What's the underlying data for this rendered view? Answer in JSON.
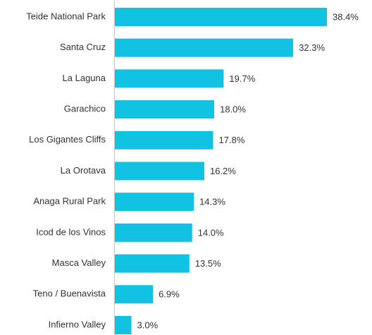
{
  "chart_data": {
    "type": "hbar",
    "categories": [
      "Teide National Park",
      "Santa Cruz",
      "La Laguna",
      "Garachico",
      "Los Gigantes Cliffs",
      "La Orotava",
      "Anaga Rural Park",
      "Icod de los Vinos",
      "Masca Valley",
      "Teno / Buenavista",
      "Infierno Valley"
    ],
    "values": [
      38.4,
      32.3,
      19.7,
      18.0,
      17.8,
      16.2,
      14.3,
      14.0,
      13.5,
      6.9,
      3.0
    ],
    "value_labels": [
      "38.4%",
      "32.3%",
      "19.7%",
      "18.0%",
      "17.8%",
      "16.2%",
      "14.3%",
      "14.0%",
      "13.5%",
      "6.9%",
      "3.0%"
    ],
    "color": "#12c2e3"
  }
}
